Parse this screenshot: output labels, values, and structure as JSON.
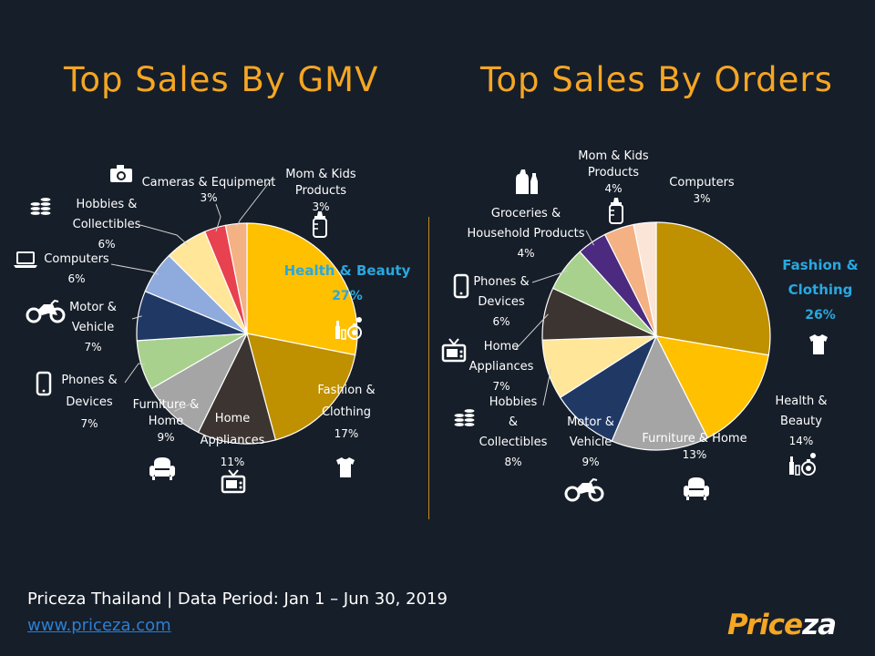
{
  "footer": {
    "period": "Priceza Thailand | Data Period: Jan 1 – Jun 30, 2019",
    "link": "www.priceza.com"
  },
  "logo": {
    "part1": "Price",
    "part2": "za"
  },
  "colors": {
    "background": "#161e29",
    "title": "#f5a623",
    "highlight_label": "#29a8e0"
  },
  "chart_data": [
    {
      "type": "pie",
      "title": "Top Sales By GMV",
      "slices": [
        {
          "label": "Health & Beauty",
          "lines": [
            "Health & Beauty"
          ],
          "value": 27,
          "pct_text": "27%",
          "color": "#ffc000",
          "icon": "beauty-icon",
          "highlight": true
        },
        {
          "label": "Fashion & Clothing",
          "lines": [
            "Fashion &",
            "Clothing"
          ],
          "value": 17,
          "pct_text": "17%",
          "color": "#bf9000",
          "icon": "shirt-icon"
        },
        {
          "label": "Home Appliances",
          "lines": [
            "Home",
            "Appliances"
          ],
          "value": 11,
          "pct_text": "11%",
          "color": "#3b3431",
          "icon": "tv-icon"
        },
        {
          "label": "Furniture & Home",
          "lines": [
            "Furniture &",
            "Home"
          ],
          "value": 9,
          "pct_text": "9%",
          "color": "#a5a5a5",
          "icon": "armchair-icon"
        },
        {
          "label": "Phones & Devices",
          "lines": [
            "Phones &",
            "Devices"
          ],
          "value": 7,
          "pct_text": "7%",
          "color": "#a9d18e",
          "icon": "phone-icon"
        },
        {
          "label": "Motor & Vehicle",
          "lines": [
            "Motor &",
            "Vehicle"
          ],
          "value": 7,
          "pct_text": "7%",
          "color": "#203864",
          "icon": "motorbike-icon"
        },
        {
          "label": "Computers",
          "lines": [
            "Computers"
          ],
          "value": 6,
          "pct_text": "6%",
          "color": "#8faadc",
          "icon": "laptop-icon"
        },
        {
          "label": "Hobbies & Collectibles",
          "lines": [
            "Hobbies &",
            "Collectibles"
          ],
          "value": 6,
          "pct_text": "6%",
          "color": "#ffe699",
          "icon": "coins-icon"
        },
        {
          "label": "Cameras & Equipment",
          "lines": [
            "Cameras & Equipment"
          ],
          "value": 3,
          "pct_text": "3%",
          "color": "#e8414f",
          "icon": "camera-icon"
        },
        {
          "label": "Mom & Kids Products",
          "lines": [
            "Mom & Kids",
            "Products"
          ],
          "value": 3,
          "pct_text": "3%",
          "color": "#f4b183",
          "icon": "baby-bottle-icon"
        }
      ]
    },
    {
      "type": "pie",
      "title": "Top Sales By Orders",
      "slices": [
        {
          "label": "Fashion & Clothing",
          "lines": [
            "Fashion &",
            "Clothing"
          ],
          "value": 26,
          "pct_text": "26%",
          "color": "#bf9000",
          "icon": "shirt-icon",
          "highlight": true
        },
        {
          "label": "Health & Beauty",
          "lines": [
            "Health &",
            "Beauty"
          ],
          "value": 14,
          "pct_text": "14%",
          "color": "#ffc000",
          "icon": "beauty-icon"
        },
        {
          "label": "Furniture & Home",
          "lines": [
            "Furniture & Home"
          ],
          "value": 13,
          "pct_text": "13%",
          "color": "#a5a5a5",
          "icon": "armchair-icon"
        },
        {
          "label": "Motor & Vehicle",
          "lines": [
            "Motor &",
            "Vehicle"
          ],
          "value": 9,
          "pct_text": "9%",
          "color": "#203864",
          "icon": "motorbike-icon"
        },
        {
          "label": "Hobbies & Collectibles",
          "lines": [
            "Hobbies",
            "&",
            "Collectibles"
          ],
          "value": 8,
          "pct_text": "8%",
          "color": "#ffe699",
          "icon": "coins-icon"
        },
        {
          "label": "Home Appliances",
          "lines": [
            "Home",
            "Appliances"
          ],
          "value": 7,
          "pct_text": "7%",
          "color": "#3b3431",
          "icon": "tv-icon"
        },
        {
          "label": "Phones & Devices",
          "lines": [
            "Phones &",
            "Devices"
          ],
          "value": 6,
          "pct_text": "6%",
          "color": "#a9d18e",
          "icon": "phone-icon"
        },
        {
          "label": "Groceries & Household Products",
          "lines": [
            "Groceries &",
            "Household Products"
          ],
          "value": 4,
          "pct_text": "4%",
          "color": "#4b2a80",
          "icon": "detergent-icon"
        },
        {
          "label": "Mom & Kids Products",
          "lines": [
            "Mom & Kids",
            "Products"
          ],
          "value": 4,
          "pct_text": "4%",
          "color": "#f4b183",
          "icon": "baby-bottle-icon"
        },
        {
          "label": "Computers",
          "lines": [
            "Computers"
          ],
          "value": 3,
          "pct_text": "3%",
          "color": "#fbe5d6",
          "icon": "laptop-icon"
        }
      ]
    }
  ]
}
